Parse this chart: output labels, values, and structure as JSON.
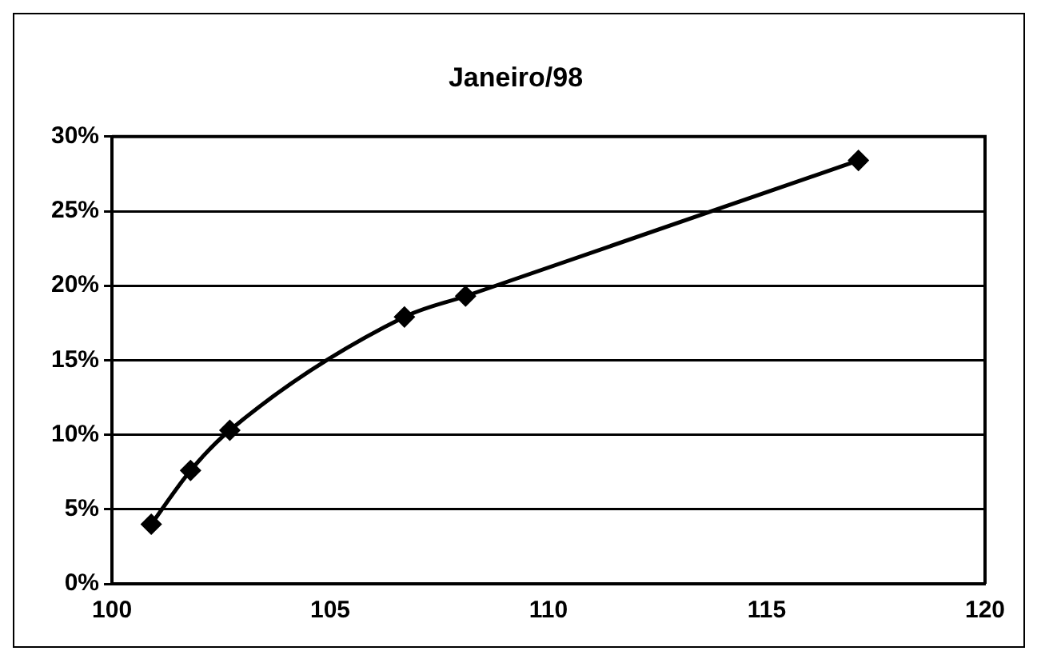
{
  "chart_data": {
    "type": "line",
    "title": "Janeiro/98",
    "x": [
      100.9,
      101.8,
      102.7,
      106.7,
      108.1,
      117.1
    ],
    "series": [
      {
        "color": "#000000",
        "values": [
          4.0,
          7.6,
          10.3,
          17.9,
          19.3,
          28.4
        ]
      }
    ],
    "xlim": [
      100,
      120
    ],
    "xticks": [
      100,
      105,
      110,
      115,
      120
    ],
    "ylim": [
      0,
      30
    ],
    "yticks": [
      {
        "value": 0,
        "label": "0%"
      },
      {
        "value": 5,
        "label": "5%"
      },
      {
        "value": 10,
        "label": "10%"
      },
      {
        "value": 15,
        "label": "15%"
      },
      {
        "value": 20,
        "label": "20%"
      },
      {
        "value": 25,
        "label": "25%"
      },
      {
        "value": 30,
        "label": "30%"
      }
    ],
    "grid": "y",
    "legend": false,
    "marker": "diamond",
    "line_style": "solid"
  }
}
